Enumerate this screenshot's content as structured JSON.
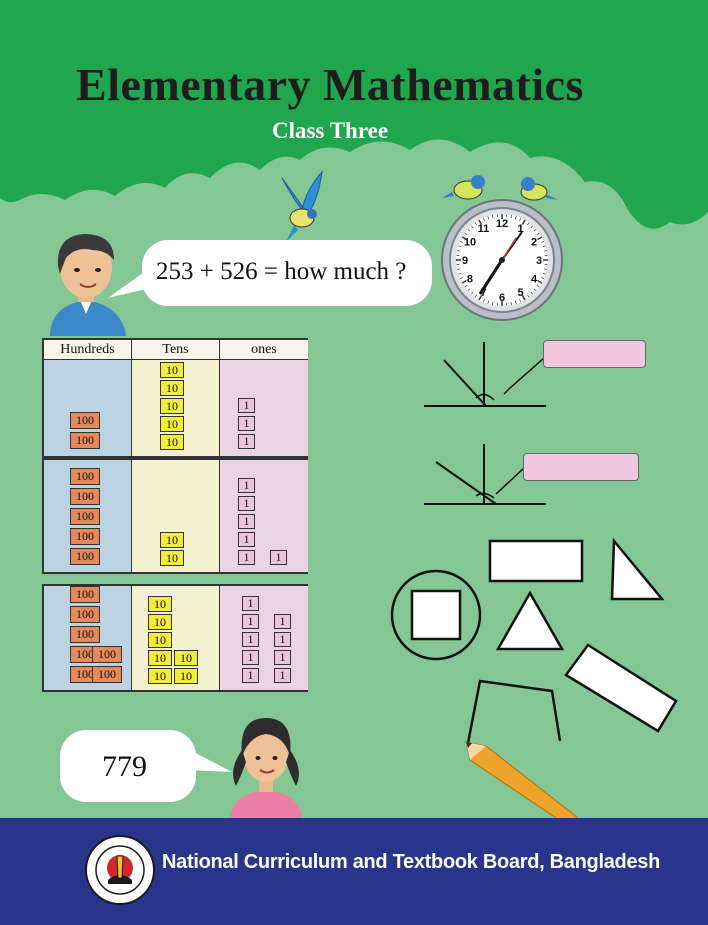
{
  "title": "Elementary Mathematics",
  "subtitle": "Class Three",
  "question_bubble": {
    "text": "253 + 526 = how much ?"
  },
  "answer_bubble": {
    "text": "779"
  },
  "place_value_table": {
    "headers": [
      "Hundreds",
      "Tens",
      "ones"
    ],
    "hundred_label": "100",
    "ten_label": "10",
    "one_label": "1",
    "rows": [
      {
        "hundreds": 2,
        "tens": 5,
        "ones": 3
      },
      {
        "hundreds": 5,
        "tens": 2,
        "ones": 6
      },
      {
        "hundreds": 7,
        "tens": 7,
        "ones": 9
      }
    ]
  },
  "clock": {
    "numbers": [
      "12",
      "1",
      "2",
      "3",
      "4",
      "5",
      "6",
      "7",
      "8",
      "9",
      "10",
      "11"
    ]
  },
  "footer": {
    "publisher": "National Curriculum and Textbook Board, Bangladesh"
  },
  "colors": {
    "background": "#84c794",
    "cloud": "#1fa64e",
    "footer": "#29358b",
    "hundred_block": "#e4895a",
    "ten_block": "#f2ec3c",
    "one_block": "#e9c6da"
  }
}
